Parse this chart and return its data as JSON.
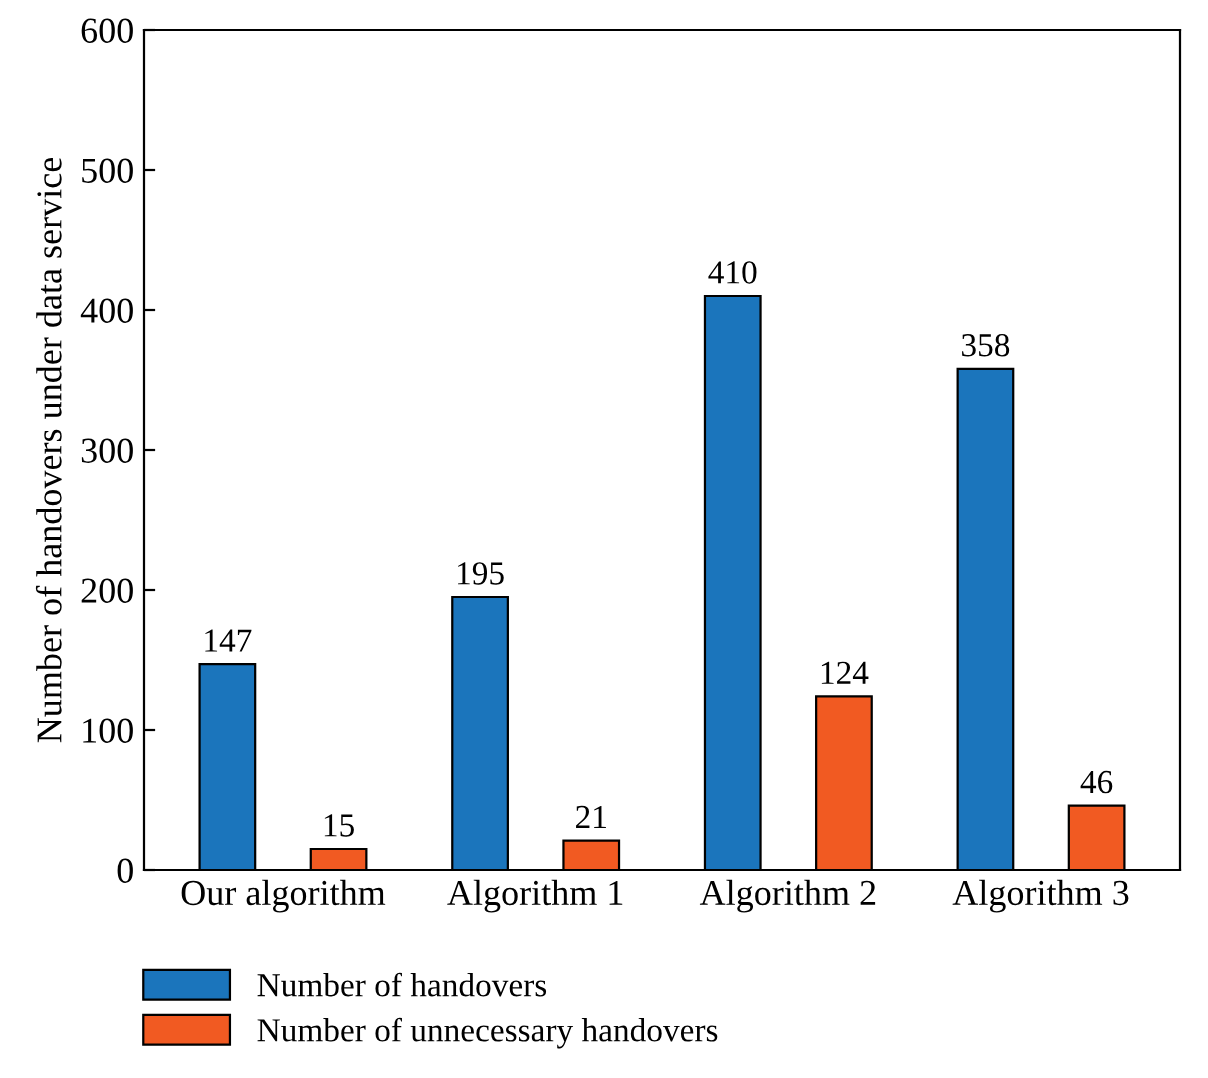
{
  "chart_data": {
    "type": "bar",
    "ylabel": "Number of handovers under data service",
    "categories": [
      "Our algorithm",
      "Algorithm 1",
      "Algorithm 2",
      "Algorithm 3"
    ],
    "series": [
      {
        "name": "Number of handovers",
        "color": "#1b75bc",
        "values": [
          147,
          195,
          410,
          358
        ]
      },
      {
        "name": "Number of unnecessary handovers",
        "color": "#f15a22",
        "values": [
          15,
          21,
          124,
          46
        ]
      }
    ],
    "ylim": [
      0,
      600
    ],
    "yticks": [
      0,
      100,
      200,
      300,
      400,
      500,
      600
    ],
    "grid": false,
    "legend": "bottom",
    "data_labels": true
  }
}
